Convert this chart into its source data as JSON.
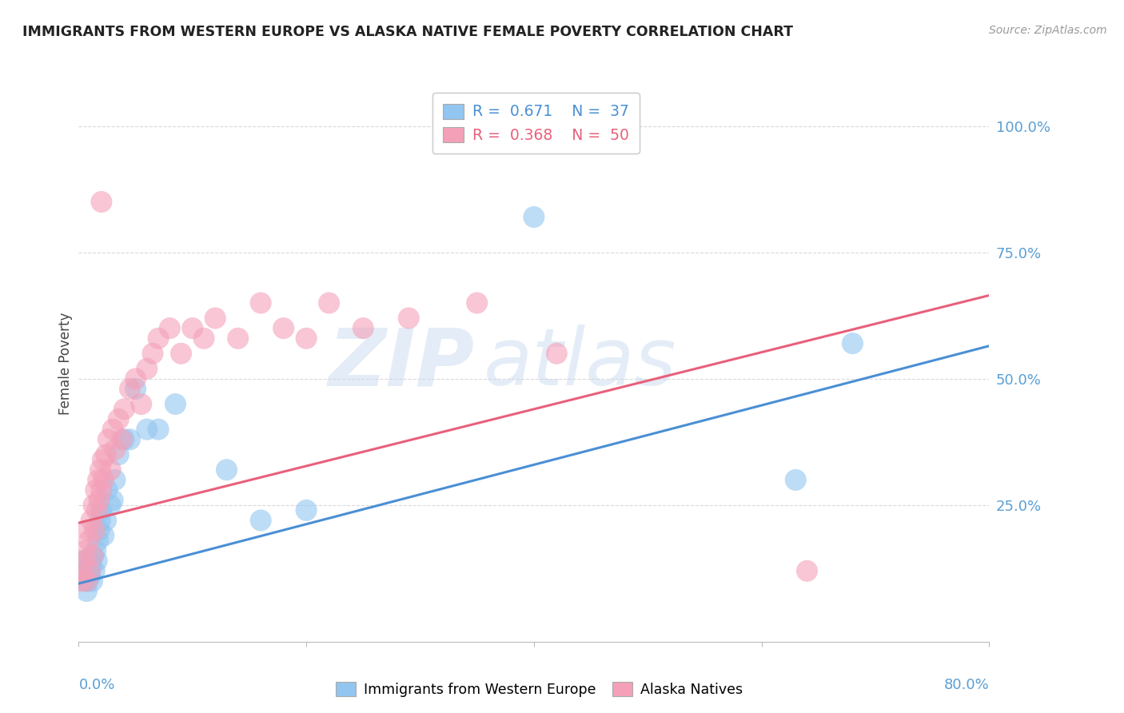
{
  "title": "IMMIGRANTS FROM WESTERN EUROPE VS ALASKA NATIVE FEMALE POVERTY CORRELATION CHART",
  "source": "Source: ZipAtlas.com",
  "ylabel": "Female Poverty",
  "xlim": [
    0.0,
    0.8
  ],
  "ylim": [
    -0.02,
    1.08
  ],
  "blue_R": "0.671",
  "blue_N": "37",
  "pink_R": "0.368",
  "pink_N": "50",
  "blue_color": "#92c5f0",
  "pink_color": "#f4a0b8",
  "blue_line_color": "#4a8fd4",
  "pink_line_color": "#e8607a",
  "legend_label_blue": "Immigrants from Western Europe",
  "legend_label_pink": "Alaska Natives",
  "watermark_zip": "ZIP",
  "watermark_atlas": "atlas",
  "background_color": "#ffffff",
  "grid_color": "#d0d0d0",
  "blue_line_x0": 0.0,
  "blue_line_y0": 0.095,
  "blue_line_x1": 0.8,
  "blue_line_y1": 0.565,
  "pink_line_x0": 0.0,
  "pink_line_y0": 0.215,
  "pink_line_x1": 0.8,
  "pink_line_y1": 0.665,
  "blue_x": [
    0.003,
    0.005,
    0.006,
    0.007,
    0.008,
    0.009,
    0.01,
    0.01,
    0.011,
    0.012,
    0.013,
    0.014,
    0.015,
    0.016,
    0.017,
    0.018,
    0.019,
    0.02,
    0.022,
    0.024,
    0.025,
    0.028,
    0.03,
    0.032,
    0.035,
    0.04,
    0.045,
    0.05,
    0.06,
    0.07,
    0.085,
    0.13,
    0.16,
    0.2,
    0.4,
    0.63,
    0.68
  ],
  "blue_y": [
    0.14,
    0.12,
    0.1,
    0.08,
    0.1,
    0.12,
    0.14,
    0.11,
    0.13,
    0.1,
    0.15,
    0.12,
    0.16,
    0.14,
    0.18,
    0.2,
    0.22,
    0.24,
    0.19,
    0.22,
    0.28,
    0.25,
    0.26,
    0.3,
    0.35,
    0.38,
    0.38,
    0.48,
    0.4,
    0.4,
    0.45,
    0.32,
    0.22,
    0.24,
    0.82,
    0.3,
    0.57
  ],
  "pink_x": [
    0.002,
    0.004,
    0.005,
    0.006,
    0.007,
    0.008,
    0.009,
    0.01,
    0.011,
    0.012,
    0.013,
    0.014,
    0.015,
    0.016,
    0.017,
    0.018,
    0.019,
    0.02,
    0.021,
    0.022,
    0.024,
    0.026,
    0.028,
    0.03,
    0.032,
    0.035,
    0.038,
    0.04,
    0.045,
    0.05,
    0.055,
    0.06,
    0.065,
    0.07,
    0.08,
    0.09,
    0.1,
    0.11,
    0.12,
    0.14,
    0.16,
    0.18,
    0.2,
    0.22,
    0.25,
    0.29,
    0.35,
    0.42,
    0.64,
    0.02
  ],
  "pink_y": [
    0.1,
    0.12,
    0.14,
    0.16,
    0.1,
    0.2,
    0.18,
    0.12,
    0.22,
    0.15,
    0.25,
    0.2,
    0.28,
    0.24,
    0.3,
    0.26,
    0.32,
    0.28,
    0.34,
    0.3,
    0.35,
    0.38,
    0.32,
    0.4,
    0.36,
    0.42,
    0.38,
    0.44,
    0.48,
    0.5,
    0.45,
    0.52,
    0.55,
    0.58,
    0.6,
    0.55,
    0.6,
    0.58,
    0.62,
    0.58,
    0.65,
    0.6,
    0.58,
    0.65,
    0.6,
    0.62,
    0.65,
    0.55,
    0.12,
    0.85
  ]
}
